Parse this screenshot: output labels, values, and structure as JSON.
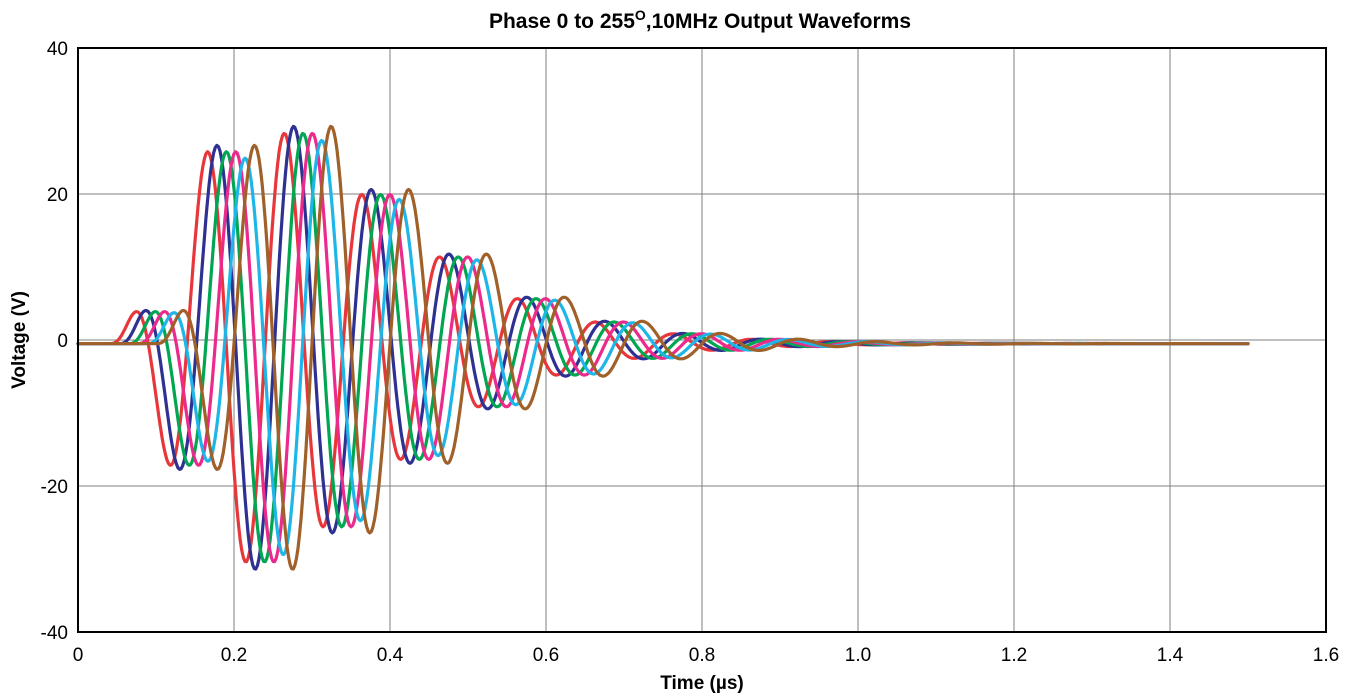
{
  "chart_data": {
    "type": "line",
    "title": "Phase 0 to 255",
    "title_superscript": "O",
    "title_suffix": ",10MHz Output Waveforms",
    "xlabel": "Time (µs)",
    "ylabel": "Voltage (V)",
    "xlim": [
      0,
      1.6
    ],
    "ylim": [
      -40,
      40
    ],
    "x_ticks": [
      "0",
      "0.2",
      "0.4",
      "0.6",
      "0.8",
      "1.0",
      "1.2",
      "1.4",
      "1.6"
    ],
    "y_ticks": [
      "40",
      "20",
      "0",
      "-20",
      "-40"
    ],
    "grid": true,
    "legend": "none",
    "signal": {
      "frequency_mhz": 10,
      "x_start": 0.0,
      "x_end": 1.5,
      "step": 0.002,
      "baseline": -0.5
    },
    "series": [
      {
        "color": "#e8373b",
        "onset": 0.04,
        "peak_time": 0.225,
        "amplitude": 30
      },
      {
        "color": "#2e3192",
        "onset": 0.052,
        "peak_time": 0.237,
        "amplitude": 31
      },
      {
        "color": "#00a651",
        "onset": 0.064,
        "peak_time": 0.249,
        "amplitude": 30
      },
      {
        "color": "#ec2a8b",
        "onset": 0.076,
        "peak_time": 0.261,
        "amplitude": 30
      },
      {
        "color": "#1eb6e8",
        "onset": 0.088,
        "peak_time": 0.273,
        "amplitude": 29
      },
      {
        "color": "#a0602a",
        "onset": 0.1,
        "peak_time": 0.285,
        "amplitude": 31
      }
    ]
  }
}
